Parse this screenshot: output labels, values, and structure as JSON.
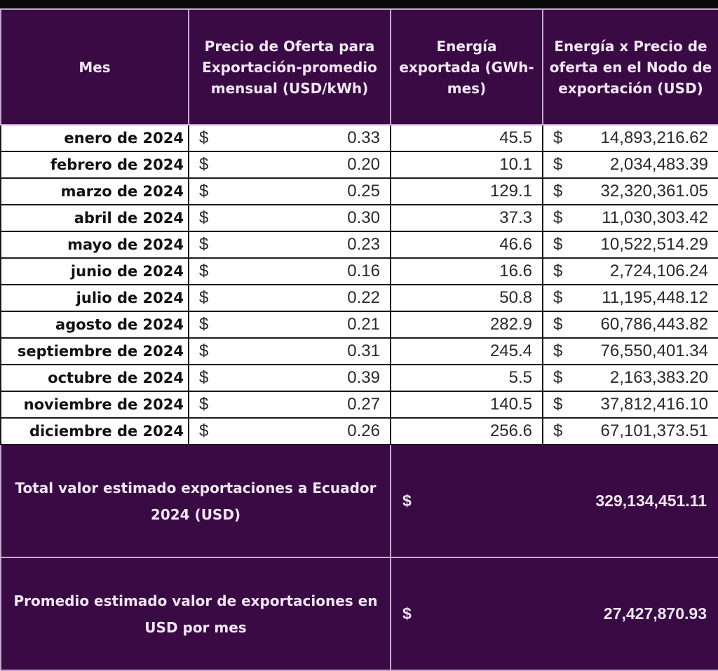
{
  "table": {
    "headers": [
      "Mes",
      "Precio de Oferta para Exportación-promedio mensual (USD/kWh)",
      "Energía exportada (GWh-mes)",
      "Energía x Precio de oferta en el Nodo de exportación (USD)"
    ],
    "currency_symbol": "$",
    "rows": [
      {
        "mes": "enero de 2024",
        "precio": "0.33",
        "energia": "45.5",
        "valor": "14,893,216.62"
      },
      {
        "mes": "febrero de 2024",
        "precio": "0.20",
        "energia": "10.1",
        "valor": "2,034,483.39"
      },
      {
        "mes": "marzo de 2024",
        "precio": "0.25",
        "energia": "129.1",
        "valor": "32,320,361.05"
      },
      {
        "mes": "abril de 2024",
        "precio": "0.30",
        "energia": "37.3",
        "valor": "11,030,303.42"
      },
      {
        "mes": "mayo de 2024",
        "precio": "0.23",
        "energia": "46.6",
        "valor": "10,522,514.29"
      },
      {
        "mes": "junio de 2024",
        "precio": "0.16",
        "energia": "16.6",
        "valor": "2,724,106.24"
      },
      {
        "mes": "julio de 2024",
        "precio": "0.22",
        "energia": "50.8",
        "valor": "11,195,448.12"
      },
      {
        "mes": "agosto de 2024",
        "precio": "0.21",
        "energia": "282.9",
        "valor": "60,786,443.82"
      },
      {
        "mes": "septiembre de 2024",
        "precio": "0.31",
        "energia": "245.4",
        "valor": "76,550,401.34"
      },
      {
        "mes": "octubre de 2024",
        "precio": "0.39",
        "energia": "5.5",
        "valor": "2,163,383.20"
      },
      {
        "mes": "noviembre de 2024",
        "precio": "0.27",
        "energia": "140.5",
        "valor": "37,812,416.10"
      },
      {
        "mes": "diciembre de 2024",
        "precio": "0.26",
        "energia": "256.6",
        "valor": "67,101,373.51"
      }
    ],
    "summary": [
      {
        "label": "Total valor estimado exportaciones a Ecuador 2024 (USD)",
        "currency": "$",
        "value": "329,134,451.11"
      },
      {
        "label": "Promedio estimado valor de exportaciones en USD por mes",
        "currency": "$",
        "value": "27,427,870.93"
      }
    ]
  },
  "colors": {
    "header_bg": "#3a0a45",
    "header_text": "#f1e6f3",
    "grid_light": "#c9a9d1"
  }
}
